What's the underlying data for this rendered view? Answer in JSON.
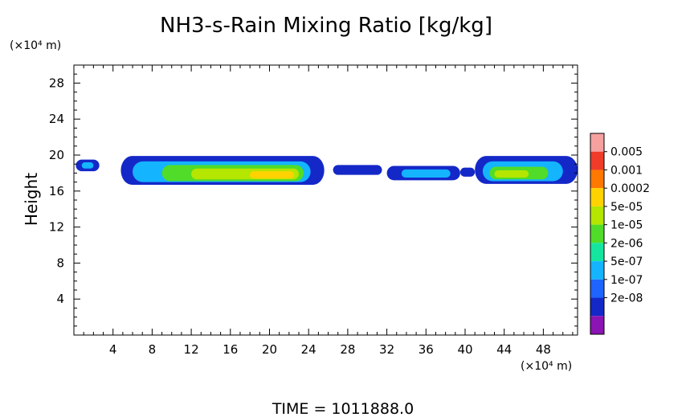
{
  "chart_data": {
    "type": "heatmap",
    "title": "NH3-s-Rain Mixing Ratio [kg/kg]",
    "xlabel": "",
    "ylabel": "Height",
    "x_unit": "(×10⁴ m)",
    "y_unit": "(×10⁴ m)",
    "xlim": [
      0,
      51.5
    ],
    "ylim": [
      0,
      30
    ],
    "x_ticks": [
      4,
      8,
      12,
      16,
      20,
      24,
      28,
      32,
      36,
      40,
      44,
      48
    ],
    "y_ticks": [
      4,
      8,
      12,
      16,
      20,
      24,
      28
    ],
    "legend": {
      "placement": "right",
      "labels": [
        "0.005",
        "0.001",
        "0.0002",
        "5e-05",
        "1e-05",
        "2e-06",
        "5e-07",
        "1e-07",
        "2e-08"
      ],
      "colors": [
        "#f6a0a0",
        "#f03c28",
        "#ff7800",
        "#ffd200",
        "#b4e600",
        "#50dc28",
        "#14e6a0",
        "#14b4ff",
        "#1e64ff",
        "#1428c8",
        "#8c14b4"
      ]
    },
    "bands": [
      {
        "x0": 0.2,
        "x1": 2.6,
        "ymin": 18.2,
        "ymax": 19.5,
        "level": 1
      },
      {
        "x0": 0.8,
        "x1": 2.0,
        "ymin": 18.5,
        "ymax": 19.2,
        "level": 3
      },
      {
        "x0": 4.8,
        "x1": 25.6,
        "ymin": 16.7,
        "ymax": 19.9,
        "level": 1
      },
      {
        "x0": 6.0,
        "x1": 24.2,
        "ymin": 17.0,
        "ymax": 19.3,
        "level": 3
      },
      {
        "x0": 9.0,
        "x1": 23.5,
        "ymin": 17.1,
        "ymax": 18.9,
        "level": 5
      },
      {
        "x0": 12.0,
        "x1": 23.0,
        "ymin": 17.3,
        "ymax": 18.5,
        "level": 6
      },
      {
        "x0": 18.0,
        "x1": 22.5,
        "ymin": 17.4,
        "ymax": 18.2,
        "level": 7
      },
      {
        "x0": 26.5,
        "x1": 31.5,
        "ymin": 17.8,
        "ymax": 18.9,
        "level": 1
      },
      {
        "x0": 32.0,
        "x1": 39.5,
        "ymin": 17.2,
        "ymax": 18.8,
        "level": 1
      },
      {
        "x0": 33.5,
        "x1": 38.5,
        "ymin": 17.5,
        "ymax": 18.4,
        "level": 3
      },
      {
        "x0": 39.5,
        "x1": 41.0,
        "ymin": 17.6,
        "ymax": 18.6,
        "level": 1
      },
      {
        "x0": 41.0,
        "x1": 51.5,
        "ymin": 16.8,
        "ymax": 19.9,
        "level": 1
      },
      {
        "x0": 41.8,
        "x1": 50.0,
        "ymin": 17.1,
        "ymax": 19.3,
        "level": 3
      },
      {
        "x0": 42.5,
        "x1": 48.5,
        "ymin": 17.3,
        "ymax": 18.7,
        "level": 5
      },
      {
        "x0": 43.0,
        "x1": 46.5,
        "ymin": 17.5,
        "ymax": 18.3,
        "level": 6
      }
    ],
    "annotation": "TIME = 1011888.0"
  }
}
